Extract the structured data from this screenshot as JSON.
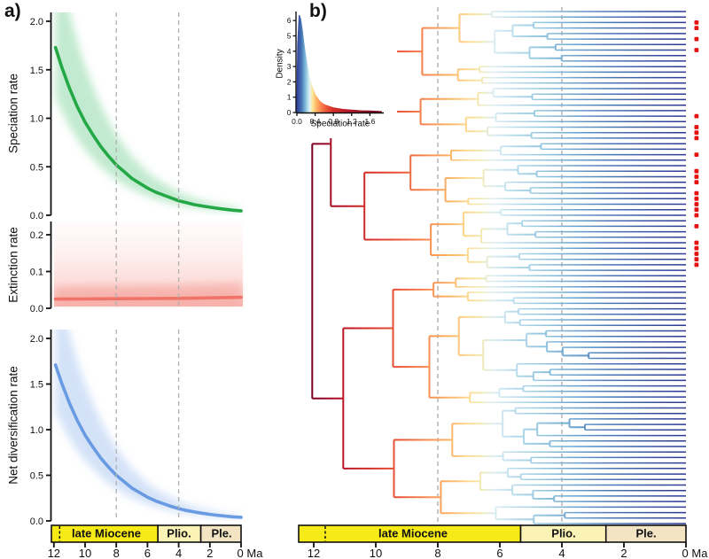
{
  "figure": {
    "panel_a_label": "a)",
    "panel_b_label": "b)",
    "time_axis": {
      "tick_values": [
        12,
        10,
        8,
        6,
        4,
        2,
        0
      ],
      "tick_labels": [
        "12",
        "10",
        "8",
        "6",
        "4",
        "2",
        "0 Ma"
      ],
      "unit": "Ma",
      "dashed_gridlines_ma": [
        8,
        4
      ],
      "gridline_color": "#b0b0b0"
    },
    "epochs": {
      "segments": [
        {
          "label": "late Miocene",
          "start_ma": 12.2,
          "end_ma": 5.33,
          "color": "#f6eb16"
        },
        {
          "label": "Plio.",
          "start_ma": 5.33,
          "end_ma": 2.58,
          "color": "#fbf2b6"
        },
        {
          "label": "Ple.",
          "start_ma": 2.58,
          "end_ma": 0,
          "color": "#f3e4c3"
        }
      ],
      "boundary_dash_ma": 11.63,
      "border_color": "#111111"
    }
  },
  "chart_data": [
    {
      "type": "line",
      "id": "speciation_rate",
      "ylabel": "Speciation rate",
      "color": "#23a845",
      "band_color": "#5ec983",
      "band_mult": [
        0.7,
        1.6
      ],
      "ytick_labels": [
        "0.0",
        "0.5",
        "1.0",
        "1.5",
        "2.0"
      ],
      "ytick_values": [
        0,
        0.5,
        1,
        1.5,
        2
      ],
      "ylim": [
        0,
        2.09
      ],
      "xlim_ma": [
        12.2,
        0
      ],
      "x_ma": [
        11.9,
        11.5,
        11,
        10.5,
        10,
        9.5,
        9,
        8.5,
        8,
        7.5,
        7,
        6.5,
        6,
        5.5,
        5,
        4.5,
        4,
        3.5,
        3,
        2.5,
        2,
        1.5,
        1,
        0.5,
        0
      ],
      "y": [
        1.73,
        1.53,
        1.31,
        1.12,
        0.96,
        0.83,
        0.71,
        0.61,
        0.52,
        0.45,
        0.38,
        0.33,
        0.28,
        0.24,
        0.21,
        0.18,
        0.15,
        0.13,
        0.11,
        0.096,
        0.083,
        0.071,
        0.061,
        0.052,
        0.045
      ]
    },
    {
      "type": "line",
      "id": "extinction_rate",
      "ylabel": "Extinction rate",
      "color": "#ef7467",
      "band_color": "#f2948a",
      "band_mult": [
        0.45,
        2.4
      ],
      "ytick_labels": [
        "0.0",
        "0.1",
        "0.2"
      ],
      "ytick_values": [
        0,
        0.1,
        0.2
      ],
      "ylim": [
        0,
        0.236
      ],
      "xlim_ma": [
        12.2,
        0
      ],
      "x_ma": [
        11.9,
        10,
        8,
        6,
        4,
        2,
        0
      ],
      "y": [
        0.025,
        0.0255,
        0.026,
        0.0265,
        0.027,
        0.0285,
        0.03
      ]
    },
    {
      "type": "line",
      "id": "net_diversification_rate",
      "ylabel": "Net diversification rate",
      "color": "#699be2",
      "band_color": "#8fb4ec",
      "band_mult": [
        0.7,
        1.6
      ],
      "ytick_labels": [
        "0.0",
        "0.5",
        "1.0",
        "1.5",
        "2.0"
      ],
      "ytick_values": [
        0,
        0.5,
        1,
        1.5,
        2
      ],
      "ylim": [
        0,
        2.1
      ],
      "xlim_ma": [
        12.2,
        0
      ],
      "x_ma": [
        11.9,
        11.5,
        11,
        10.5,
        10,
        9.5,
        9,
        8.5,
        8,
        7.5,
        7,
        6.5,
        6,
        5.5,
        5,
        4.5,
        4,
        3.5,
        3,
        2.5,
        2,
        1.5,
        1,
        0.5,
        0
      ],
      "y": [
        1.71,
        1.51,
        1.29,
        1.1,
        0.94,
        0.81,
        0.69,
        0.59,
        0.5,
        0.43,
        0.36,
        0.31,
        0.26,
        0.22,
        0.19,
        0.16,
        0.135,
        0.115,
        0.098,
        0.084,
        0.072,
        0.061,
        0.052,
        0.045,
        0.04
      ]
    },
    {
      "type": "area",
      "id": "speciation_density_inset",
      "xlabel": "Speciation rate",
      "ylabel": "Density",
      "xtick_labels": [
        "0.0",
        "0.4",
        "0.8",
        "1.2",
        "1.6"
      ],
      "xtick_values": [
        0,
        0.4,
        0.8,
        1.2,
        1.6
      ],
      "ytick_values": [
        0,
        1,
        2,
        3,
        4,
        5,
        6
      ],
      "xlim": [
        0,
        1.85
      ],
      "ylim": [
        0,
        6.6
      ],
      "x": [
        0,
        0.02,
        0.05,
        0.08,
        0.12,
        0.16,
        0.2,
        0.25,
        0.3,
        0.4,
        0.5,
        0.6,
        0.8,
        1.0,
        1.2,
        1.4,
        1.6,
        1.8,
        1.85
      ],
      "y": [
        0.3,
        4.5,
        6.35,
        6.1,
        5.3,
        4.35,
        3.5,
        2.6,
        1.95,
        1.15,
        0.72,
        0.5,
        0.3,
        0.2,
        0.15,
        0.11,
        0.09,
        0.07,
        0.06
      ],
      "gradient_stops": [
        [
          0,
          "#2f3e99"
        ],
        [
          0.1,
          "#4575b4"
        ],
        [
          0.17,
          "#74add1"
        ],
        [
          0.23,
          "#abd9e9"
        ],
        [
          0.28,
          "#e0f3f8"
        ],
        [
          0.34,
          "#fee999"
        ],
        [
          0.44,
          "#fdae61"
        ],
        [
          0.58,
          "#f46d43"
        ],
        [
          0.78,
          "#d73027"
        ],
        [
          1.15,
          "#b5182b"
        ],
        [
          1.5,
          "#931026"
        ],
        [
          1.85,
          "#7f0a22"
        ]
      ]
    },
    {
      "type": "phylogeny",
      "id": "rate_colored_tree",
      "n_tips": 94,
      "root_age_ma": 12.05,
      "clade_sizes": [
        48,
        46
      ],
      "clade_ages_ma": [
        11.45,
        11.05
      ],
      "rng_seed": 11,
      "age_factor": [
        0.775,
        0.155
      ],
      "min_node_age_ma": 0.6,
      "red_marker_color": "#e41210",
      "red_tip_rows": [
        2,
        3,
        5,
        7,
        19,
        21,
        22,
        23,
        26,
        29,
        30,
        31,
        33,
        34,
        35,
        36,
        37,
        39,
        42,
        43,
        44,
        45,
        46
      ],
      "branch_gradient_stops_ma": [
        [
          12.05,
          "#7a0022"
        ],
        [
          11.2,
          "#b50f26"
        ],
        [
          10.2,
          "#d73027"
        ],
        [
          9.2,
          "#ea5839"
        ],
        [
          8.3,
          "#f98e52"
        ],
        [
          7.6,
          "#fdb567"
        ],
        [
          7.05,
          "#fed98f"
        ],
        [
          6.6,
          "#f2eab4"
        ],
        [
          6.2,
          "#dcedf4"
        ],
        [
          5.5,
          "#b8dcec"
        ],
        [
          4.5,
          "#8fc3dd"
        ],
        [
          3.5,
          "#699fcd"
        ],
        [
          2.5,
          "#4c7ab8"
        ],
        [
          1.3,
          "#3a57a5"
        ],
        [
          0,
          "#2c3792"
        ]
      ]
    }
  ]
}
